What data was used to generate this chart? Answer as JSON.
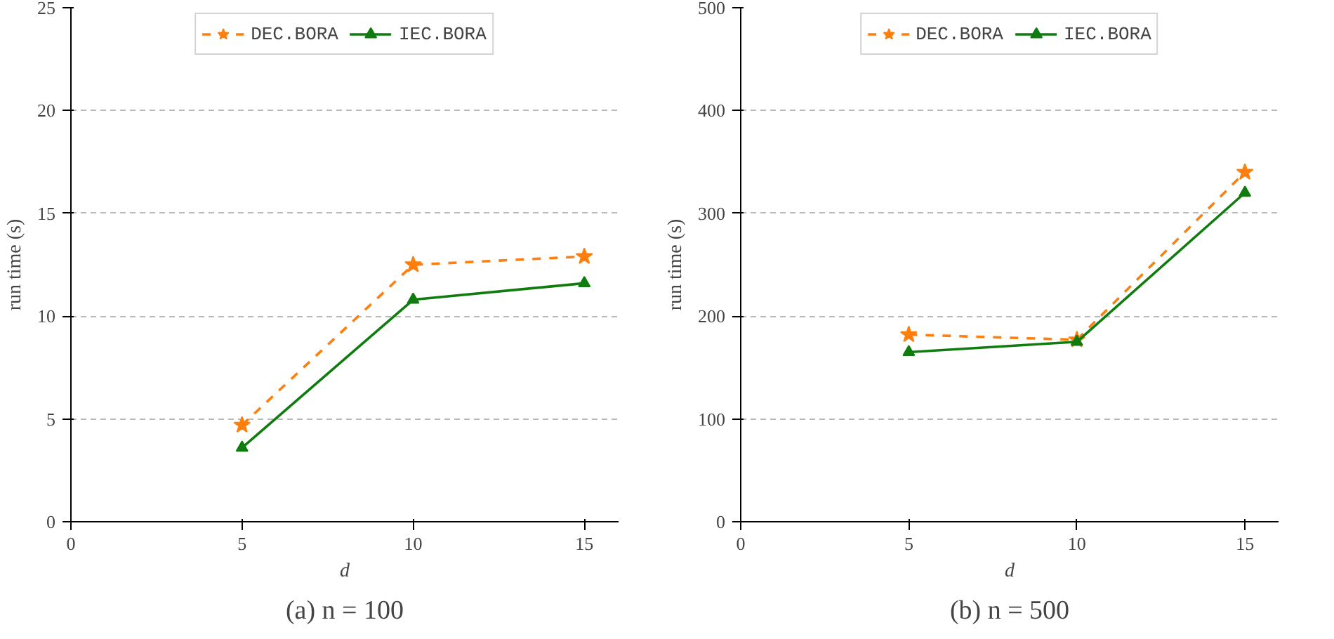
{
  "chart_data": [
    {
      "type": "line",
      "xlabel": "d",
      "ylabel": "run time (s)",
      "annotations": [
        "(a) n = 100"
      ],
      "x": [
        5,
        10,
        15
      ],
      "xlim": [
        0,
        16
      ],
      "xticks": [
        0,
        5,
        10,
        15
      ],
      "ylim": [
        0,
        25
      ],
      "yticks": [
        0,
        5,
        10,
        15,
        20,
        25
      ],
      "grid": "y",
      "legend": "top",
      "series": [
        {
          "name": "DEC.BORA",
          "color": "#ff7f0e",
          "values": [
            4.7,
            12.5,
            12.9
          ],
          "marker": "star",
          "line_style": "dashed"
        },
        {
          "name": "IEC.BORA",
          "color": "#107c10",
          "values": [
            3.6,
            10.8,
            11.6
          ],
          "marker": "triangle",
          "line_style": "solid"
        }
      ]
    },
    {
      "type": "line",
      "xlabel": "d",
      "ylabel": "run time (s)",
      "annotations": [
        "(b) n = 500"
      ],
      "x": [
        5,
        10,
        15
      ],
      "xlim": [
        0,
        16
      ],
      "xticks": [
        0,
        5,
        10,
        15
      ],
      "ylim": [
        0,
        500
      ],
      "yticks": [
        0,
        100,
        200,
        300,
        400,
        500
      ],
      "grid": "y",
      "legend": "top",
      "series": [
        {
          "name": "DEC.BORA",
          "color": "#ff7f0e",
          "values": [
            182,
            177,
            340
          ],
          "marker": "star",
          "line_style": "dashed"
        },
        {
          "name": "IEC.BORA",
          "color": "#107c10",
          "values": [
            165,
            175,
            320
          ],
          "marker": "triangle",
          "line_style": "solid"
        }
      ]
    }
  ]
}
